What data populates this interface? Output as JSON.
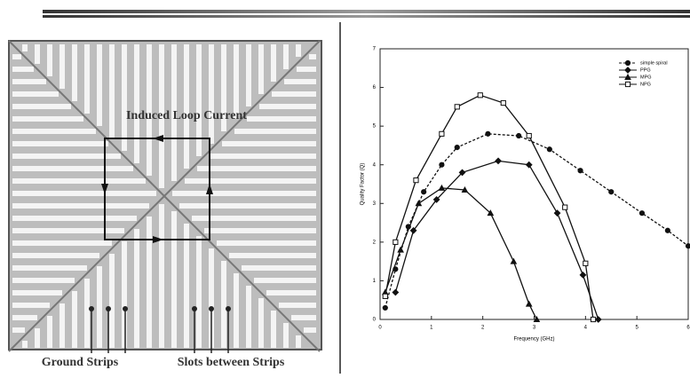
{
  "diagram": {
    "loop_label": "Induced Loop Current",
    "ground_label": "Ground Strips",
    "slots_label": "Slots between Strips"
  },
  "chart_data": {
    "type": "line",
    "xlabel": "Frequency (GHz)",
    "ylabel": "Quality Factor (Q)",
    "xlim": [
      0,
      6
    ],
    "xticks": [
      0,
      1,
      2,
      3,
      4,
      5,
      6
    ],
    "ylim": [
      0,
      7
    ],
    "yticks": [
      0,
      1,
      2,
      3,
      4,
      5,
      6,
      7
    ],
    "legend": "upper right",
    "series": [
      {
        "name": "simple spiral",
        "color": "#111",
        "marker": "circle",
        "dashed": true,
        "x": [
          0.1,
          0.3,
          0.55,
          0.85,
          1.2,
          1.5,
          2.1,
          2.7,
          3.3,
          3.9,
          4.5,
          5.1,
          5.6,
          6.0
        ],
        "values": [
          0.3,
          1.3,
          2.4,
          3.3,
          4.0,
          4.45,
          4.8,
          4.75,
          4.4,
          3.85,
          3.3,
          2.75,
          2.3,
          1.9
        ]
      },
      {
        "name": "PPG",
        "color": "#111",
        "marker": "diamond",
        "dashed": false,
        "x": [
          0.3,
          0.65,
          1.1,
          1.6,
          2.3,
          2.9,
          3.45,
          3.95,
          4.25
        ],
        "values": [
          0.7,
          2.3,
          3.1,
          3.8,
          4.1,
          4.0,
          2.75,
          1.15,
          0
        ]
      },
      {
        "name": "MPG",
        "color": "#111",
        "marker": "triangle",
        "dashed": false,
        "x": [
          0.1,
          0.4,
          0.75,
          1.2,
          1.65,
          2.15,
          2.6,
          2.9,
          3.05
        ],
        "values": [
          0.7,
          1.8,
          3.0,
          3.4,
          3.35,
          2.75,
          1.5,
          0.4,
          0
        ]
      },
      {
        "name": "NPG",
        "color": "#111",
        "marker": "square",
        "dashed": false,
        "x": [
          0.1,
          0.3,
          0.7,
          1.2,
          1.5,
          1.95,
          2.4,
          2.9,
          3.6,
          4.0,
          4.15
        ],
        "values": [
          0.6,
          2.0,
          3.6,
          4.8,
          5.5,
          5.8,
          5.6,
          4.75,
          2.9,
          1.45,
          0
        ]
      }
    ]
  }
}
